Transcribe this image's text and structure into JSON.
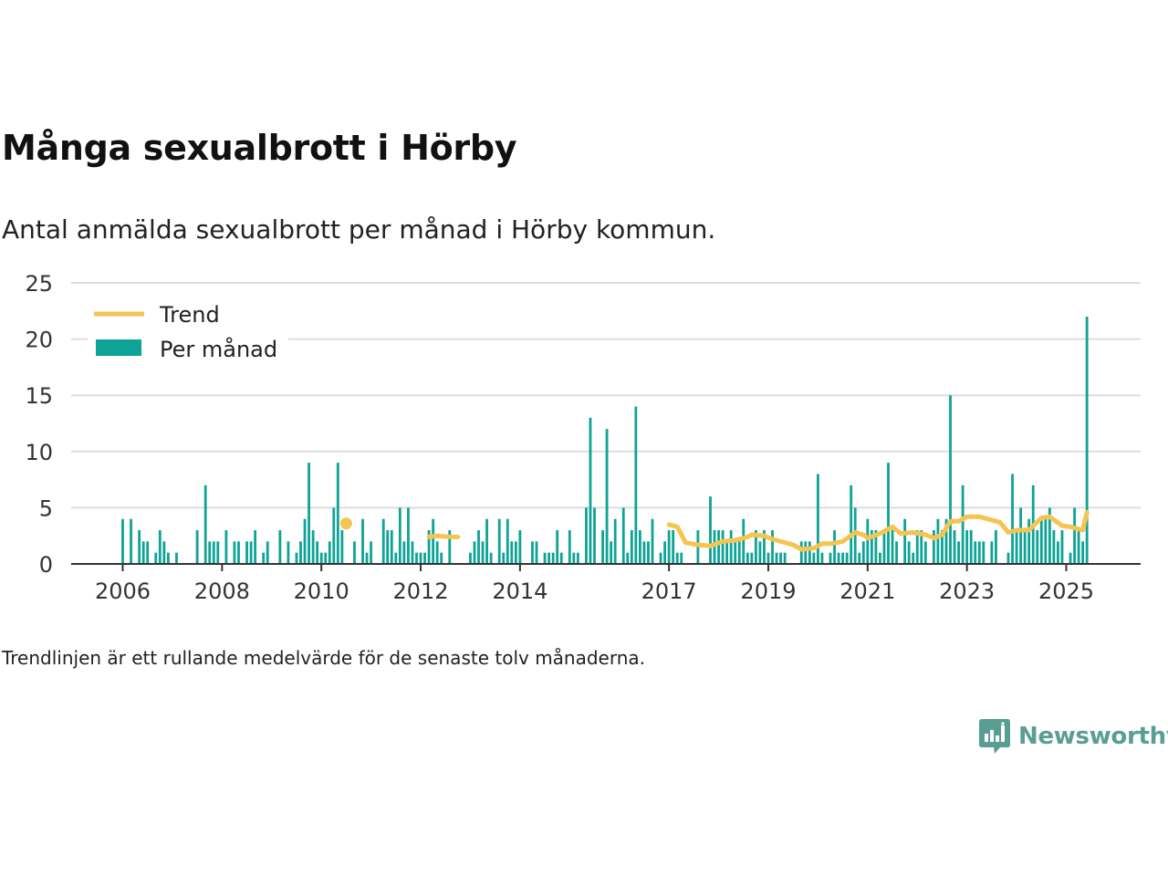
{
  "header": {
    "title": "Många sexualbrott i Hörby",
    "subtitle": "Antal anmälda sexualbrott per månad i Hörby kommun."
  },
  "footer": {
    "note": "Trendlinjen är ett rullande medelvärde för de senaste tolv månaderna.",
    "brand": "Newsworthy"
  },
  "colors": {
    "bars": "#0ea396",
    "trend": "#f5c451",
    "grid": "#dddddd",
    "axis": "#333333",
    "brand": "#5a9e93"
  },
  "chart_data": {
    "type": "bar",
    "title": "Många sexualbrott i Hörby",
    "subtitle": "Antal anmälda sexualbrott per månad i Hörby kommun.",
    "xlabel": "",
    "ylabel": "",
    "ylim": [
      0,
      25
    ],
    "y_ticks": [
      0,
      5,
      10,
      15,
      20,
      25
    ],
    "x_ticks": [
      "2006",
      "2008",
      "2010",
      "2012",
      "2014",
      "2017",
      "2019",
      "2021",
      "2023",
      "2025"
    ],
    "x_range": [
      "2005-01",
      "2025-10"
    ],
    "grid": true,
    "legend": {
      "position": "top-left",
      "entries": [
        "Trend",
        "Per månad"
      ]
    },
    "bar_series": {
      "name": "Per månad",
      "points": [
        [
          "2006-01",
          4
        ],
        [
          "2006-03",
          4
        ],
        [
          "2006-05",
          3
        ],
        [
          "2006-06",
          2
        ],
        [
          "2006-07",
          2
        ],
        [
          "2006-09",
          1
        ],
        [
          "2006-10",
          3
        ],
        [
          "2006-11",
          2
        ],
        [
          "2006-12",
          1
        ],
        [
          "2007-02",
          1
        ],
        [
          "2007-07",
          3
        ],
        [
          "2007-09",
          7
        ],
        [
          "2007-10",
          2
        ],
        [
          "2007-11",
          2
        ],
        [
          "2007-12",
          2
        ],
        [
          "2008-02",
          3
        ],
        [
          "2008-04",
          2
        ],
        [
          "2008-05",
          2
        ],
        [
          "2008-07",
          2
        ],
        [
          "2008-08",
          2
        ],
        [
          "2008-09",
          3
        ],
        [
          "2008-11",
          1
        ],
        [
          "2008-12",
          2
        ],
        [
          "2009-03",
          3
        ],
        [
          "2009-05",
          2
        ],
        [
          "2009-07",
          1
        ],
        [
          "2009-08",
          2
        ],
        [
          "2009-09",
          4
        ],
        [
          "2009-10",
          9
        ],
        [
          "2009-11",
          3
        ],
        [
          "2009-12",
          2
        ],
        [
          "2010-01",
          1
        ],
        [
          "2010-02",
          1
        ],
        [
          "2010-03",
          2
        ],
        [
          "2010-04",
          5
        ],
        [
          "2010-05",
          9
        ],
        [
          "2010-06",
          3
        ],
        [
          "2010-09",
          2
        ],
        [
          "2010-11",
          4
        ],
        [
          "2010-12",
          1
        ],
        [
          "2011-01",
          2
        ],
        [
          "2011-04",
          4
        ],
        [
          "2011-05",
          3
        ],
        [
          "2011-06",
          3
        ],
        [
          "2011-07",
          1
        ],
        [
          "2011-08",
          5
        ],
        [
          "2011-09",
          2
        ],
        [
          "2011-10",
          5
        ],
        [
          "2011-11",
          2
        ],
        [
          "2011-12",
          1
        ],
        [
          "2012-01",
          1
        ],
        [
          "2012-02",
          1
        ],
        [
          "2012-03",
          3
        ],
        [
          "2012-04",
          4
        ],
        [
          "2012-05",
          2
        ],
        [
          "2012-06",
          1
        ],
        [
          "2012-08",
          3
        ],
        [
          "2013-01",
          1
        ],
        [
          "2013-02",
          2
        ],
        [
          "2013-03",
          3
        ],
        [
          "2013-04",
          2
        ],
        [
          "2013-05",
          4
        ],
        [
          "2013-06",
          1
        ],
        [
          "2013-08",
          4
        ],
        [
          "2013-09",
          1
        ],
        [
          "2013-10",
          4
        ],
        [
          "2013-11",
          2
        ],
        [
          "2013-12",
          2
        ],
        [
          "2014-01",
          3
        ],
        [
          "2014-04",
          2
        ],
        [
          "2014-05",
          2
        ],
        [
          "2014-07",
          1
        ],
        [
          "2014-08",
          1
        ],
        [
          "2014-09",
          1
        ],
        [
          "2014-10",
          3
        ],
        [
          "2014-11",
          1
        ],
        [
          "2015-01",
          3
        ],
        [
          "2015-02",
          1
        ],
        [
          "2015-03",
          1
        ],
        [
          "2015-05",
          5
        ],
        [
          "2015-06",
          13
        ],
        [
          "2015-07",
          5
        ],
        [
          "2015-09",
          3
        ],
        [
          "2015-10",
          12
        ],
        [
          "2015-11",
          2
        ],
        [
          "2015-12",
          4
        ],
        [
          "2016-02",
          5
        ],
        [
          "2016-03",
          1
        ],
        [
          "2016-04",
          3
        ],
        [
          "2016-05",
          14
        ],
        [
          "2016-06",
          3
        ],
        [
          "2016-07",
          2
        ],
        [
          "2016-08",
          2
        ],
        [
          "2016-09",
          4
        ],
        [
          "2016-11",
          1
        ],
        [
          "2016-12",
          2
        ],
        [
          "2017-01",
          3
        ],
        [
          "2017-02",
          3
        ],
        [
          "2017-03",
          1
        ],
        [
          "2017-04",
          1
        ],
        [
          "2017-08",
          3
        ],
        [
          "2017-11",
          6
        ],
        [
          "2017-12",
          3
        ],
        [
          "2018-01",
          3
        ],
        [
          "2018-02",
          3
        ],
        [
          "2018-03",
          2
        ],
        [
          "2018-04",
          3
        ],
        [
          "2018-05",
          2
        ],
        [
          "2018-06",
          2
        ],
        [
          "2018-07",
          4
        ],
        [
          "2018-08",
          1
        ],
        [
          "2018-09",
          1
        ],
        [
          "2018-10",
          3
        ],
        [
          "2018-11",
          2
        ],
        [
          "2018-12",
          3
        ],
        [
          "2019-01",
          1
        ],
        [
          "2019-02",
          3
        ],
        [
          "2019-03",
          1
        ],
        [
          "2019-04",
          1
        ],
        [
          "2019-05",
          1
        ],
        [
          "2019-09",
          2
        ],
        [
          "2019-10",
          2
        ],
        [
          "2019-11",
          2
        ],
        [
          "2019-12",
          1
        ],
        [
          "2020-01",
          8
        ],
        [
          "2020-02",
          1
        ],
        [
          "2020-04",
          1
        ],
        [
          "2020-05",
          3
        ],
        [
          "2020-06",
          1
        ],
        [
          "2020-07",
          1
        ],
        [
          "2020-08",
          1
        ],
        [
          "2020-09",
          7
        ],
        [
          "2020-10",
          5
        ],
        [
          "2020-11",
          1
        ],
        [
          "2020-12",
          2
        ],
        [
          "2021-01",
          4
        ],
        [
          "2021-02",
          3
        ],
        [
          "2021-03",
          3
        ],
        [
          "2021-04",
          1
        ],
        [
          "2021-05",
          3
        ],
        [
          "2021-06",
          9
        ],
        [
          "2021-07",
          3
        ],
        [
          "2021-08",
          2
        ],
        [
          "2021-10",
          4
        ],
        [
          "2021-11",
          2
        ],
        [
          "2021-12",
          1
        ],
        [
          "2022-01",
          3
        ],
        [
          "2022-02",
          3
        ],
        [
          "2022-03",
          2
        ],
        [
          "2022-05",
          3
        ],
        [
          "2022-06",
          4
        ],
        [
          "2022-07",
          3
        ],
        [
          "2022-08",
          4
        ],
        [
          "2022-09",
          15
        ],
        [
          "2022-10",
          3
        ],
        [
          "2022-11",
          2
        ],
        [
          "2022-12",
          7
        ],
        [
          "2023-01",
          3
        ],
        [
          "2023-02",
          3
        ],
        [
          "2023-03",
          2
        ],
        [
          "2023-04",
          2
        ],
        [
          "2023-05",
          2
        ],
        [
          "2023-07",
          2
        ],
        [
          "2023-08",
          3
        ],
        [
          "2023-11",
          1
        ],
        [
          "2023-12",
          8
        ],
        [
          "2024-01",
          3
        ],
        [
          "2024-02",
          5
        ],
        [
          "2024-03",
          3
        ],
        [
          "2024-04",
          4
        ],
        [
          "2024-05",
          7
        ],
        [
          "2024-06",
          3
        ],
        [
          "2024-07",
          4
        ],
        [
          "2024-08",
          4
        ],
        [
          "2024-09",
          5
        ],
        [
          "2024-10",
          3
        ],
        [
          "2024-11",
          2
        ],
        [
          "2024-12",
          3
        ],
        [
          "2025-02",
          1
        ],
        [
          "2025-03",
          5
        ],
        [
          "2025-04",
          3
        ],
        [
          "2025-05",
          2
        ],
        [
          "2025-06",
          22
        ]
      ]
    },
    "trend_series": {
      "name": "Trend",
      "segments": [
        [
          [
            "2010-07",
            3.6
          ]
        ],
        [
          [
            "2012-03",
            2.4
          ],
          [
            "2012-05",
            2.5
          ],
          [
            "2012-08",
            2.4
          ],
          [
            "2012-10",
            2.4
          ]
        ],
        [
          [
            "2017-01",
            3.5
          ],
          [
            "2017-03",
            3.3
          ],
          [
            "2017-05",
            1.9
          ],
          [
            "2017-08",
            1.7
          ],
          [
            "2017-11",
            1.6
          ],
          [
            "2018-02",
            2.0
          ],
          [
            "2018-05",
            2.1
          ],
          [
            "2018-08",
            2.4
          ],
          [
            "2018-09",
            2.6
          ],
          [
            "2018-12",
            2.5
          ],
          [
            "2019-02",
            2.2
          ],
          [
            "2019-05",
            1.9
          ],
          [
            "2019-07",
            1.7
          ],
          [
            "2019-09",
            1.3
          ],
          [
            "2019-12",
            1.4
          ],
          [
            "2020-02",
            1.8
          ],
          [
            "2020-04",
            1.8
          ],
          [
            "2020-07",
            2.0
          ],
          [
            "2020-10",
            2.8
          ],
          [
            "2020-12",
            2.6
          ],
          [
            "2021-01",
            2.3
          ],
          [
            "2021-04",
            2.7
          ],
          [
            "2021-07",
            3.3
          ],
          [
            "2021-09",
            2.7
          ],
          [
            "2021-12",
            2.8
          ],
          [
            "2022-03",
            2.6
          ],
          [
            "2022-05",
            2.3
          ],
          [
            "2022-07",
            2.6
          ],
          [
            "2022-09",
            3.8
          ],
          [
            "2022-11",
            3.8
          ],
          [
            "2023-01",
            4.2
          ],
          [
            "2023-04",
            4.2
          ],
          [
            "2023-06",
            4.0
          ],
          [
            "2023-09",
            3.7
          ],
          [
            "2023-11",
            2.8
          ],
          [
            "2024-01",
            3.0
          ],
          [
            "2024-04",
            3.0
          ],
          [
            "2024-07",
            4.1
          ],
          [
            "2024-09",
            4.2
          ],
          [
            "2024-12",
            3.4
          ],
          [
            "2025-02",
            3.3
          ],
          [
            "2025-05",
            3.0
          ],
          [
            "2025-06",
            4.6
          ]
        ]
      ]
    }
  }
}
